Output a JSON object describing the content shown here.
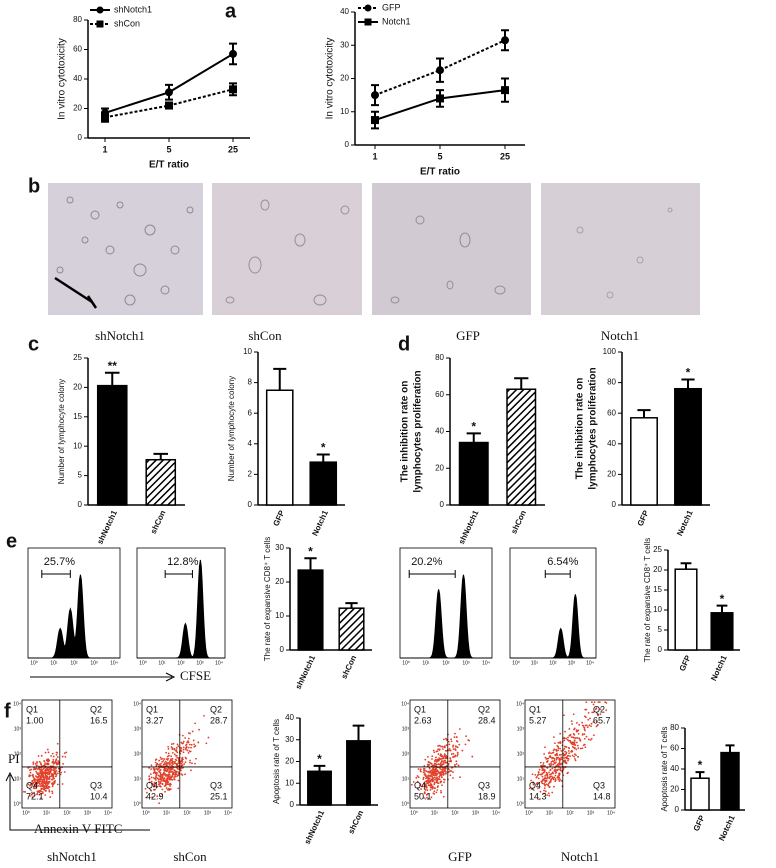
{
  "panel_labels": [
    "a",
    "b",
    "c",
    "d",
    "e",
    "f"
  ],
  "chart_data": [
    {
      "type": "line",
      "ylabel": "In vitro cytotoxicity",
      "xlabel": "E/T ratio",
      "categories": [
        "1",
        "5",
        "25"
      ],
      "ylim": [
        0,
        80
      ],
      "yticks": [
        0,
        20,
        40,
        60,
        80
      ],
      "legend": "upper left",
      "series": [
        {
          "name": "shNotch1",
          "color": "#000000",
          "marker": "circle",
          "dashed": false,
          "values": [
            17,
            31,
            57
          ],
          "errors": [
            3,
            5,
            7
          ]
        },
        {
          "name": "shCon",
          "color": "#000000",
          "marker": "square",
          "dashed": true,
          "values": [
            14,
            22,
            33
          ],
          "errors": [
            3,
            2,
            4
          ]
        }
      ]
    },
    {
      "type": "line",
      "ylabel": "In vitro cytotoxicity",
      "xlabel": "E/T ratio",
      "categories": [
        "1",
        "5",
        "25"
      ],
      "ylim": [
        0,
        40
      ],
      "yticks": [
        0,
        10,
        20,
        30,
        40
      ],
      "legend": "upper left",
      "series": [
        {
          "name": "GFP",
          "color": "#000000",
          "marker": "circle",
          "dashed": true,
          "values": [
            15,
            22.5,
            31.5
          ],
          "errors": [
            3,
            3.5,
            3
          ]
        },
        {
          "name": "Notch1",
          "color": "#000000",
          "marker": "square",
          "dashed": false,
          "values": [
            7.5,
            14,
            16.5
          ],
          "errors": [
            2.5,
            2.5,
            3.5
          ]
        }
      ]
    },
    {
      "type": "bar",
      "title": "shNotch1",
      "ylabel": "Number of lymphocyte colony",
      "categories": [
        "shNotch1",
        "shCon"
      ],
      "values": [
        20.3,
        7.7
      ],
      "errors": [
        2.2,
        1
      ],
      "value_annotations": [
        "**",
        null
      ],
      "colors": [
        "#000000",
        "#000000"
      ],
      "hatched": [
        false,
        true
      ],
      "ylim": [
        0,
        25
      ],
      "yticks": [
        0,
        5,
        10,
        15,
        20,
        25
      ]
    },
    {
      "type": "bar",
      "title": "shCon",
      "ylabel": "Number of lymphocyte colony",
      "categories": [
        "GFP",
        "Notch1"
      ],
      "values": [
        7.5,
        2.8
      ],
      "errors": [
        1.4,
        0.5
      ],
      "value_annotations": [
        null,
        "*"
      ],
      "colors": [
        "#ffffff",
        "#000000"
      ],
      "hatched": [
        false,
        false
      ],
      "ylim": [
        0,
        10
      ],
      "yticks": [
        0,
        2,
        4,
        6,
        8,
        10
      ]
    },
    {
      "type": "bar",
      "title": "GFP",
      "ylabel": [
        "The inhibition rate on",
        "lymphocytes proliferation"
      ],
      "categories": [
        "shNotch1",
        "shCon"
      ],
      "values": [
        34,
        63
      ],
      "errors": [
        5,
        6
      ],
      "value_annotations": [
        "*",
        null
      ],
      "colors": [
        "#000000",
        "#000000"
      ],
      "hatched": [
        false,
        true
      ],
      "ylim": [
        0,
        80
      ],
      "yticks": [
        0,
        20,
        40,
        60,
        80
      ]
    },
    {
      "type": "bar",
      "title": "Notch1",
      "ylabel": [
        "The inhibition rate on",
        "lymphocytes proliferation"
      ],
      "categories": [
        "GFP",
        "Notch1"
      ],
      "values": [
        57,
        76
      ],
      "errors": [
        5,
        6
      ],
      "value_annotations": [
        null,
        "*"
      ],
      "colors": [
        "#ffffff",
        "#000000"
      ],
      "hatched": [
        false,
        false
      ],
      "ylim": [
        0,
        100
      ],
      "yticks": [
        0,
        20,
        40,
        60,
        80,
        100
      ]
    },
    {
      "type": "bar",
      "ylabel": "The rate of expansive CD8⁺ T cells",
      "categories": [
        "shNotch1",
        "shCon"
      ],
      "values": [
        23.5,
        12.3
      ],
      "errors": [
        3.5,
        1.5
      ],
      "value_annotations": [
        "*",
        null
      ],
      "colors": [
        "#000000",
        "#000000"
      ],
      "hatched": [
        false,
        true
      ],
      "ylim": [
        0,
        30
      ],
      "yticks": [
        0,
        10,
        20,
        30
      ]
    },
    {
      "type": "bar",
      "ylabel": "The rate of expansive CD8⁺ T cells",
      "categories": [
        "GFP",
        "Notch1"
      ],
      "values": [
        20.2,
        9.3
      ],
      "errors": [
        1.5,
        1.8
      ],
      "value_annotations": [
        null,
        "*"
      ],
      "colors": [
        "#ffffff",
        "#000000"
      ],
      "hatched": [
        false,
        false
      ],
      "ylim": [
        0,
        25
      ],
      "yticks": [
        0,
        5,
        10,
        15,
        20,
        25
      ]
    },
    {
      "type": "bar",
      "ylabel": "Apoptosis rate of T cells",
      "categories": [
        "shNotch1",
        "shCon"
      ],
      "values": [
        15.5,
        29.5
      ],
      "errors": [
        2.5,
        7
      ],
      "value_annotations": [
        "*",
        null
      ],
      "colors": [
        "#000000",
        "#000000"
      ],
      "hatched": [
        false,
        false
      ],
      "ylim": [
        0,
        40
      ],
      "yticks": [
        0,
        10,
        20,
        30,
        40
      ]
    },
    {
      "type": "bar",
      "ylabel": "Apoptosis rate of T cells",
      "categories": [
        "GFP",
        "Notch1"
      ],
      "values": [
        31,
        56
      ],
      "errors": [
        6,
        7
      ],
      "value_annotations": [
        "*",
        null
      ],
      "colors": [
        "#ffffff",
        "#000000"
      ],
      "hatched": [
        false,
        false
      ],
      "ylim": [
        0,
        80
      ],
      "yticks": [
        0,
        20,
        40,
        60,
        80
      ]
    }
  ],
  "flow_ticks": [
    "10⁰",
    "10¹",
    "10²",
    "10³",
    "10⁴"
  ],
  "flow_histograms": [
    {
      "gate": "25.7%"
    },
    {
      "gate": "12.8%"
    },
    {
      "gate": "20.2%"
    },
    {
      "gate": "6.54%"
    }
  ],
  "histogram_axis_label": "CFSE",
  "flow_scatter": [
    {
      "quadrants": [
        {
          "name": "Q1",
          "value": "1.00"
        },
        {
          "name": "Q2",
          "value": "16.5"
        },
        {
          "name": "Q3",
          "value": "10.4"
        },
        {
          "name": "Q4",
          "value": "72.1"
        }
      ]
    },
    {
      "quadrants": [
        {
          "name": "Q1",
          "value": "3.27"
        },
        {
          "name": "Q2",
          "value": "28.7"
        },
        {
          "name": "Q3",
          "value": "25.1"
        },
        {
          "name": "Q4",
          "value": "42.9"
        }
      ]
    },
    {
      "quadrants": [
        {
          "name": "Q1",
          "value": "2.63"
        },
        {
          "name": "Q2",
          "value": "28.4"
        },
        {
          "name": "Q3",
          "value": "18.9"
        },
        {
          "name": "Q4",
          "value": "50.1"
        }
      ]
    },
    {
      "quadrants": [
        {
          "name": "Q1",
          "value": "5.27"
        },
        {
          "name": "Q2",
          "value": "65.7"
        },
        {
          "name": "Q3",
          "value": "14.8"
        },
        {
          "name": "Q4",
          "value": "14.3"
        }
      ]
    }
  ],
  "scatter_y_label": "PI",
  "scatter_x_label": "Annexin V-FITC",
  "bottom_labels": [
    "shNotch1",
    "shCon",
    "GFP",
    "Notch1"
  ]
}
